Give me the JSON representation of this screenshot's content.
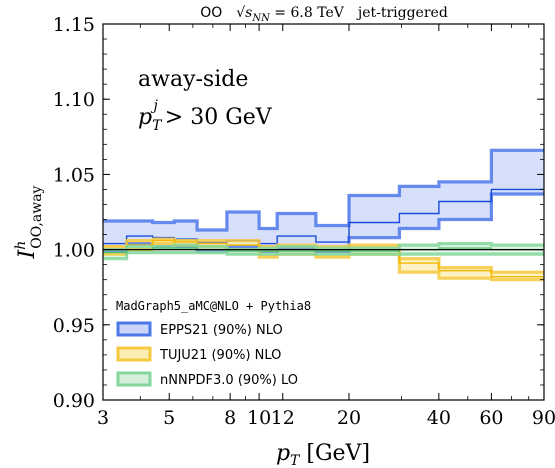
{
  "chart_data": {
    "type": "line",
    "title_parts": {
      "system": "OO",
      "energy": "√s",
      "energy_sub": "NN",
      "energy_value": " = 6.8 TeV",
      "trigger": "jet-triggered"
    },
    "xlabel": "p",
    "xlabel_sub": "T",
    "xlabel_unit": " [GeV]",
    "ylabel": "I",
    "ylabel_sup": "h",
    "ylabel_sub": "OO,away",
    "xscale": "log",
    "xlim": [
      3,
      90
    ],
    "ylim": [
      0.9,
      1.15
    ],
    "xticks": [
      3,
      5,
      8,
      10,
      12,
      20,
      40,
      60,
      90
    ],
    "xtick_labels": [
      "3",
      "5",
      "8",
      "10",
      "12",
      "20",
      "40",
      "60",
      "90"
    ],
    "yticks": [
      0.9,
      0.95,
      1.0,
      1.05,
      1.1,
      1.15
    ],
    "ytick_labels": [
      "0.90",
      "0.95",
      "1.00",
      "1.05",
      "1.10",
      "1.15"
    ],
    "reference_line": 1.0,
    "annotations": {
      "line1": "away-side",
      "line2_p": "p",
      "line2_sub": "T",
      "line2_sup": "j",
      "line2_rest": " > 30 GeV"
    },
    "legend": {
      "title": "MadGraph5_aMC@NLO + Pythia8",
      "placement": "lower-left"
    },
    "bin_edges": [
      3,
      3.6,
      4.4,
      5.2,
      6.2,
      7.8,
      10.0,
      11.5,
      15.5,
      20.0,
      29.5,
      40.0,
      60.0,
      90.0
    ],
    "series": [
      {
        "name": "EPPS21 (90%) NLO",
        "color": "#4d78ea",
        "fill": "#cad6f9",
        "line": "#1a4bde",
        "central": [
          1.004,
          1.009,
          1.008,
          1.007,
          1.005,
          1.006,
          1.004,
          1.009,
          1.005,
          1.018,
          1.024,
          1.032,
          1.04
        ],
        "upper": [
          1.019,
          1.019,
          1.018,
          1.019,
          1.013,
          1.025,
          1.014,
          1.024,
          1.016,
          1.036,
          1.042,
          1.045,
          1.066
        ],
        "lower": [
          0.999,
          1.004,
          1.002,
          1.002,
          0.999,
          1.002,
          0.999,
          1.001,
          0.999,
          1.008,
          1.014,
          1.02,
          1.037
        ]
      },
      {
        "name": "TUJU21 (90%) NLO",
        "color": "#f5c940",
        "fill": "#fbedb3",
        "line": "#f3b800",
        "central": [
          1.0,
          1.003,
          1.006,
          1.005,
          1.004,
          1.003,
          0.999,
          1.0,
          1.0,
          1.0,
          0.991,
          0.986,
          0.982
        ],
        "upper": [
          1.002,
          1.006,
          1.007,
          1.006,
          1.006,
          1.006,
          1.002,
          1.003,
          1.002,
          1.003,
          0.994,
          0.988,
          0.985
        ],
        "lower": [
          0.997,
          1.0,
          1.004,
          1.003,
          1.002,
          1.0,
          0.995,
          0.997,
          0.995,
          0.997,
          0.985,
          0.981,
          0.98
        ]
      },
      {
        "name": "nNNPDF3.0 (90%) LO",
        "color": "#84d69b",
        "fill": "#d4f0dc",
        "line": "#52bf6f",
        "central": [
          0.998,
          1.0,
          1.001,
          1.001,
          1.0,
          0.999,
          0.999,
          0.999,
          0.999,
          0.999,
          1.0,
          1.001,
          1.0
        ],
        "upper": [
          1.0,
          1.002,
          1.002,
          1.003,
          1.002,
          1.0,
          1.001,
          1.002,
          1.001,
          1.001,
          1.003,
          1.004,
          1.003
        ],
        "lower": [
          0.994,
          0.998,
          0.998,
          0.998,
          0.998,
          0.997,
          0.997,
          0.997,
          0.997,
          0.997,
          0.997,
          0.997,
          0.997
        ]
      }
    ]
  }
}
